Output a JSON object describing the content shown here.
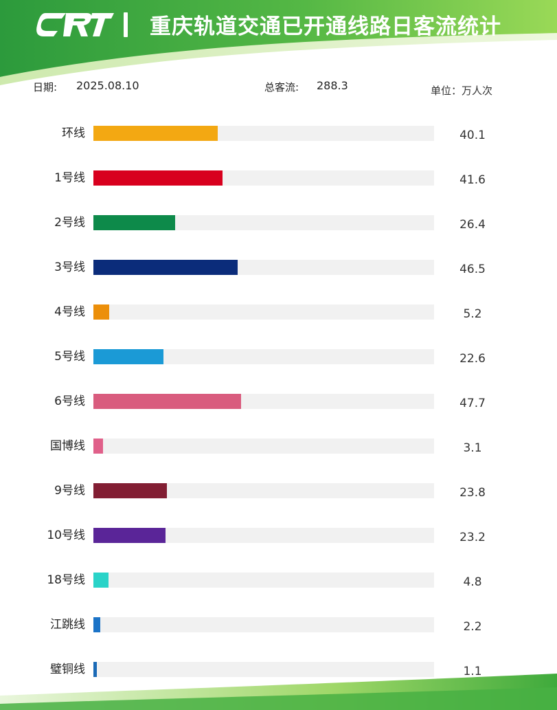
{
  "header": {
    "logo_text": "CRT",
    "title": "重庆轨道交通已开通线路日客流统计"
  },
  "info": {
    "date_label": "日期:",
    "date_value": "2025.08.10",
    "total_label": "总客流:",
    "total_value": "288.3",
    "unit": "单位：万人次"
  },
  "colors": {
    "header_green_dark": "#2f9e3f",
    "header_green_light": "#8fd14f",
    "track": "#f1f1f1"
  },
  "chart_data": {
    "type": "bar",
    "orientation": "horizontal",
    "title": "重庆轨道交通已开通线路日客流统计",
    "unit": "万人次",
    "xlim": [
      0,
      110
    ],
    "grid": false,
    "legend": "none",
    "categories": [
      "环线",
      "1号线",
      "2号线",
      "3号线",
      "4号线",
      "5号线",
      "6号线",
      "国博线",
      "9号线",
      "10号线",
      "18号线",
      "江跳线",
      "璧铜线"
    ],
    "values": [
      40.1,
      41.6,
      26.4,
      46.5,
      5.2,
      22.6,
      47.7,
      3.1,
      23.8,
      23.2,
      4.8,
      2.2,
      1.1
    ],
    "value_labels": [
      "40.1",
      "41.6",
      "26.4",
      "46.5",
      "5.2",
      "22.6",
      "47.7",
      "3.1",
      "23.8",
      "23.2",
      "4.8",
      "2.2",
      "1.1"
    ],
    "bar_colors": [
      "#f3a812",
      "#d8001e",
      "#0d8a4a",
      "#0b2c7a",
      "#ec8f0a",
      "#1b9ad6",
      "#d95c7e",
      "#e0608a",
      "#821e33",
      "#5a2598",
      "#2ad3c8",
      "#1b73c7",
      "#1b6ab6"
    ]
  }
}
